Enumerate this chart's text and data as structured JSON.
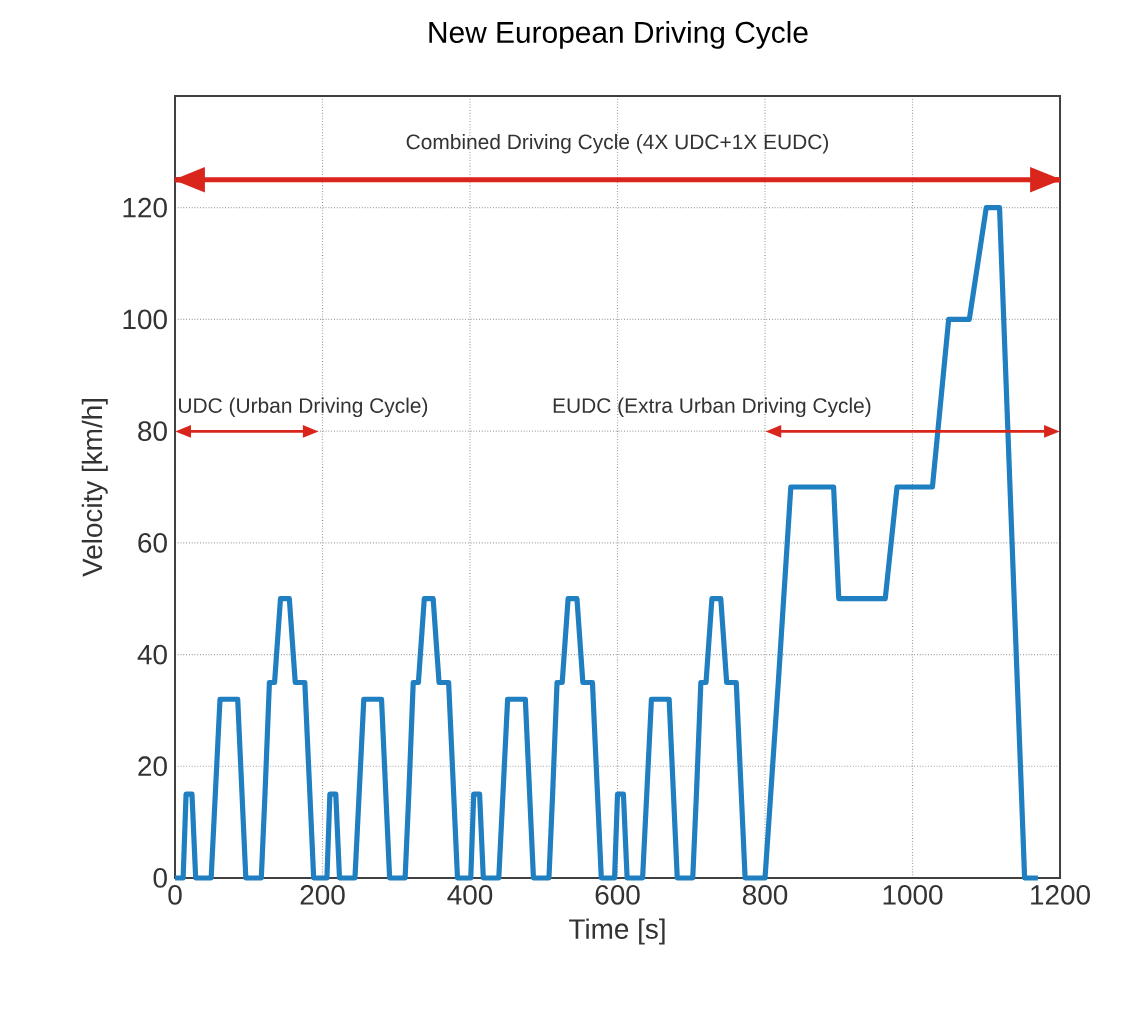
{
  "chart_data": {
    "type": "line",
    "title": "New European Driving Cycle",
    "xlabel": "Time [s]",
    "ylabel": "Velocity [km/h]",
    "xlim": [
      0,
      1200
    ],
    "ylim": [
      0,
      140
    ],
    "xticks": [
      0,
      200,
      400,
      600,
      800,
      1000,
      1200
    ],
    "yticks": [
      0,
      20,
      40,
      60,
      80,
      100,
      120
    ],
    "grid": true,
    "series": [
      {
        "color": "#1f7fc0",
        "x": [
          0,
          11,
          15,
          23,
          28,
          49,
          61,
          85,
          96,
          117,
          122,
          128,
          135,
          143,
          155,
          163,
          176,
          188,
          195,
          206,
          210,
          218,
          223,
          244,
          256,
          280,
          291,
          312,
          317,
          323,
          330,
          338,
          350,
          358,
          371,
          383,
          390,
          401,
          405,
          413,
          418,
          439,
          451,
          475,
          486,
          507,
          512,
          518,
          525,
          533,
          545,
          553,
          566,
          578,
          585,
          596,
          600,
          608,
          613,
          634,
          646,
          670,
          681,
          702,
          707,
          713,
          720,
          728,
          740,
          748,
          761,
          773,
          780,
          800,
          818,
          835,
          893,
          900,
          963,
          979,
          1027,
          1049,
          1077,
          1100,
          1118,
          1152,
          1170
        ],
        "values": [
          0,
          0,
          15,
          15,
          0,
          0,
          32,
          32,
          0,
          0,
          15,
          35,
          35,
          50,
          50,
          35,
          35,
          0,
          0,
          0,
          15,
          15,
          0,
          0,
          32,
          32,
          0,
          0,
          15,
          35,
          35,
          50,
          50,
          35,
          35,
          0,
          0,
          0,
          15,
          15,
          0,
          0,
          32,
          32,
          0,
          0,
          15,
          35,
          35,
          50,
          50,
          35,
          35,
          0,
          0,
          0,
          15,
          15,
          0,
          0,
          32,
          32,
          0,
          0,
          15,
          35,
          35,
          50,
          50,
          35,
          35,
          0,
          0,
          0,
          35,
          70,
          70,
          50,
          50,
          70,
          70,
          100,
          100,
          120,
          120,
          0,
          0
        ]
      }
    ],
    "ref_lines": [
      {
        "axis": "y",
        "value": 125,
        "label": "Combined Driving Cycle (4X UDC+1X EUDC)",
        "color": "#d9251c"
      }
    ],
    "annotations": [
      "UDC (Urban Driving Cycle)",
      "EUDC (Extra Urban Driving Cycle)"
    ]
  }
}
